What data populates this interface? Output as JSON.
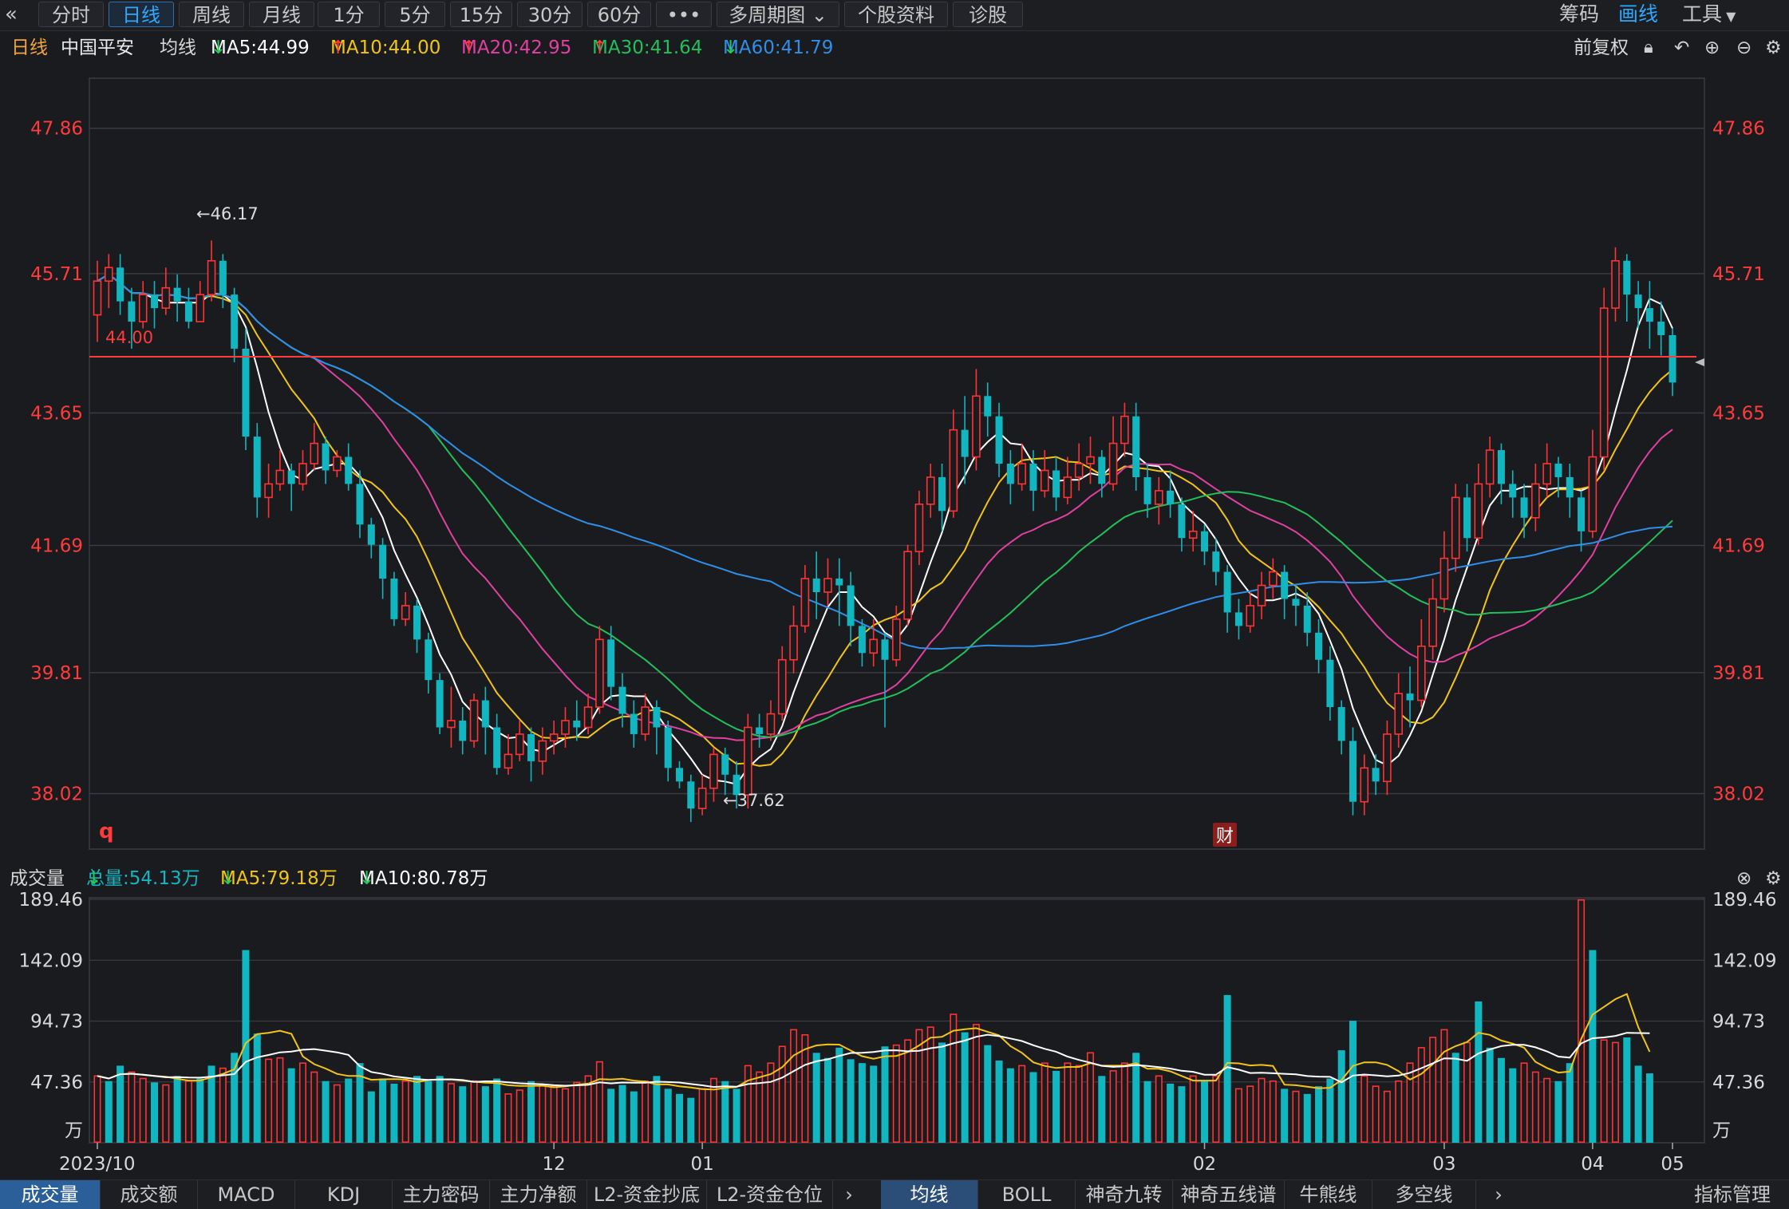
{
  "toolbar": {
    "back_icon": "double-chevron-left-icon",
    "period_tabs": [
      "分时",
      "日线",
      "周线",
      "月线",
      "1分",
      "5分",
      "15分",
      "30分",
      "60分",
      "•••"
    ],
    "active_tab": "日线",
    "multi_period": "多周期图",
    "stock_info": "个股资料",
    "diagnose": "诊股",
    "chips": "筹码",
    "draw": "画线",
    "tools": "工具"
  },
  "ma_header": {
    "period": "日线",
    "stock_name": "中国平安",
    "ma_label": "均线",
    "ma5": "MA5:44.99",
    "ma10": "MA10:44.00",
    "ma20": "MA20:42.95",
    "ma30": "MA30:41.64",
    "ma60": "MA60:41.79",
    "adjust": "前复权"
  },
  "colors": {
    "up": "#ff3333",
    "down": "#11b6c0",
    "ma5": "#ffffff",
    "ma10": "#f2c418",
    "ma20": "#e040a0",
    "ma30": "#22c05a",
    "ma60": "#2f8fe8",
    "price_axis": "#ff3b3b",
    "grid": "#3a3b42",
    "ref_line": "#ff3b3b"
  },
  "price_axis": {
    "ticks": [
      "47.86",
      "45.71",
      "43.65",
      "41.69",
      "39.81",
      "38.02"
    ]
  },
  "annotations": {
    "high_label": "←46.17",
    "low_label": "←37.62",
    "ref_price": "44.00",
    "q_mark": "q",
    "fin_mark": "财"
  },
  "volume_header": {
    "title": "成交量",
    "total": "总量:54.13万",
    "ma5": "MA5:79.18万",
    "ma10": "MA10:80.78万"
  },
  "volume_axis": {
    "ticks": [
      "189.46",
      "142.09",
      "94.73",
      "47.36"
    ],
    "unit": "万"
  },
  "x_axis": {
    "labels": [
      "2023/10",
      "12",
      "01",
      "02",
      "03",
      "04",
      "05"
    ]
  },
  "bottom_tabs_left": [
    "成交量",
    "成交额",
    "MACD",
    "KDJ",
    "主力密码",
    "主力净额",
    "L2-资金抄底",
    "L2-资金仓位"
  ],
  "bottom_tabs_right": [
    "均线",
    "BOLL",
    "神奇九转",
    "神奇五线谱",
    "牛熊线",
    "多空线"
  ],
  "bottom_right": "指标管理",
  "chart_data": {
    "type": "candlestick",
    "ylim": [
      37.2,
      48.6
    ],
    "vol_max": 189.46,
    "candles": [
      [
        45.1,
        45.6,
        44.7,
        45.9
      ],
      [
        45.6,
        45.8,
        45.2,
        46.0
      ],
      [
        45.8,
        45.3,
        45.1,
        46.0
      ],
      [
        45.3,
        45.0,
        44.6,
        45.5
      ],
      [
        45.0,
        45.4,
        44.9,
        45.6
      ],
      [
        45.4,
        45.2,
        44.9,
        45.6
      ],
      [
        45.2,
        45.5,
        45.1,
        45.8
      ],
      [
        45.5,
        45.3,
        45.0,
        45.7
      ],
      [
        45.3,
        45.0,
        44.9,
        45.5
      ],
      [
        45.0,
        45.4,
        45.0,
        45.6
      ],
      [
        45.4,
        45.9,
        45.3,
        46.2
      ],
      [
        45.9,
        45.4,
        45.2,
        46.0
      ],
      [
        45.4,
        44.6,
        44.4,
        45.5
      ],
      [
        44.6,
        43.3,
        43.1,
        44.9
      ],
      [
        43.3,
        42.4,
        42.1,
        43.5
      ],
      [
        42.4,
        42.6,
        42.1,
        42.9
      ],
      [
        42.6,
        42.8,
        42.5,
        43.1
      ],
      [
        42.8,
        42.6,
        42.2,
        42.9
      ],
      [
        42.6,
        42.9,
        42.5,
        43.1
      ],
      [
        42.9,
        43.2,
        42.8,
        43.5
      ],
      [
        43.2,
        42.8,
        42.6,
        43.3
      ],
      [
        42.8,
        43.0,
        42.7,
        43.1
      ],
      [
        43.0,
        42.6,
        42.5,
        43.2
      ],
      [
        42.6,
        42.0,
        41.8,
        42.8
      ],
      [
        42.0,
        41.7,
        41.5,
        42.1
      ],
      [
        41.7,
        41.2,
        40.9,
        41.8
      ],
      [
        41.2,
        40.6,
        40.5,
        41.3
      ],
      [
        40.6,
        40.8,
        40.5,
        41.0
      ],
      [
        40.8,
        40.3,
        40.1,
        40.9
      ],
      [
        40.3,
        39.7,
        39.5,
        40.4
      ],
      [
        39.7,
        39.0,
        38.9,
        39.8
      ],
      [
        39.0,
        39.1,
        38.7,
        39.6
      ],
      [
        39.1,
        38.8,
        38.6,
        39.3
      ],
      [
        38.8,
        39.4,
        38.7,
        39.5
      ],
      [
        39.4,
        39.0,
        38.6,
        39.6
      ],
      [
        39.0,
        38.4,
        38.3,
        39.2
      ],
      [
        38.4,
        38.6,
        38.3,
        38.9
      ],
      [
        38.6,
        38.9,
        38.5,
        39.1
      ],
      [
        38.9,
        38.5,
        38.2,
        39.0
      ],
      [
        38.5,
        38.8,
        38.3,
        39.0
      ],
      [
        38.8,
        38.9,
        38.6,
        39.1
      ],
      [
        38.9,
        39.1,
        38.7,
        39.3
      ],
      [
        39.1,
        39.0,
        38.8,
        39.4
      ],
      [
        39.0,
        39.3,
        38.9,
        39.5
      ],
      [
        39.3,
        40.3,
        39.2,
        40.5
      ],
      [
        40.3,
        39.6,
        39.4,
        40.5
      ],
      [
        39.6,
        39.2,
        39.0,
        39.8
      ],
      [
        39.2,
        38.9,
        38.7,
        39.4
      ],
      [
        38.9,
        39.3,
        38.8,
        39.5
      ],
      [
        39.3,
        39.0,
        38.6,
        39.4
      ],
      [
        39.0,
        38.4,
        38.2,
        39.1
      ],
      [
        38.4,
        38.2,
        38.1,
        38.5
      ],
      [
        38.2,
        37.8,
        37.6,
        38.3
      ],
      [
        37.8,
        38.1,
        37.7,
        38.3
      ],
      [
        38.1,
        38.6,
        37.9,
        38.7
      ],
      [
        38.6,
        38.3,
        38.0,
        38.7
      ],
      [
        38.3,
        38.0,
        37.8,
        38.5
      ],
      [
        38.0,
        39.0,
        37.8,
        39.2
      ],
      [
        39.0,
        38.9,
        38.7,
        39.2
      ],
      [
        38.9,
        39.2,
        38.8,
        39.4
      ],
      [
        39.2,
        40.0,
        39.1,
        40.2
      ],
      [
        40.0,
        40.5,
        39.8,
        40.8
      ],
      [
        40.5,
        41.2,
        40.4,
        41.4
      ],
      [
        41.2,
        41.0,
        40.6,
        41.6
      ],
      [
        41.0,
        41.2,
        40.8,
        41.5
      ],
      [
        41.2,
        41.1,
        40.5,
        41.5
      ],
      [
        41.1,
        40.5,
        40.2,
        41.3
      ],
      [
        40.5,
        40.1,
        39.9,
        40.6
      ],
      [
        40.1,
        40.3,
        39.9,
        40.6
      ],
      [
        40.3,
        40.0,
        39.0,
        40.4
      ],
      [
        40.0,
        40.6,
        39.9,
        40.8
      ],
      [
        40.6,
        41.6,
        40.5,
        41.7
      ],
      [
        41.6,
        42.3,
        41.4,
        42.5
      ],
      [
        42.3,
        42.7,
        42.1,
        42.9
      ],
      [
        42.7,
        42.2,
        41.9,
        42.9
      ],
      [
        42.2,
        43.4,
        42.1,
        43.7
      ],
      [
        43.4,
        43.0,
        42.6,
        43.9
      ],
      [
        43.0,
        43.9,
        42.8,
        44.3
      ],
      [
        43.9,
        43.6,
        43.3,
        44.1
      ],
      [
        43.6,
        42.9,
        42.7,
        43.8
      ],
      [
        42.9,
        42.6,
        42.3,
        43.1
      ],
      [
        42.6,
        42.9,
        42.5,
        43.2
      ],
      [
        42.9,
        42.5,
        42.2,
        43.1
      ],
      [
        42.5,
        42.8,
        42.4,
        43.1
      ],
      [
        42.8,
        42.4,
        42.2,
        43.0
      ],
      [
        42.4,
        42.7,
        42.3,
        43.0
      ],
      [
        42.7,
        42.9,
        42.5,
        43.2
      ],
      [
        42.9,
        43.0,
        42.6,
        43.3
      ],
      [
        43.0,
        42.6,
        42.4,
        43.1
      ],
      [
        42.6,
        43.2,
        42.5,
        43.6
      ],
      [
        43.2,
        43.6,
        43.0,
        43.8
      ],
      [
        43.6,
        42.7,
        42.5,
        43.8
      ],
      [
        42.7,
        42.3,
        42.1,
        42.9
      ],
      [
        42.3,
        42.5,
        42.0,
        42.7
      ],
      [
        42.5,
        42.3,
        42.1,
        42.8
      ],
      [
        42.3,
        41.8,
        41.6,
        42.4
      ],
      [
        41.8,
        41.9,
        41.6,
        42.2
      ],
      [
        41.9,
        41.6,
        41.4,
        42.0
      ],
      [
        41.6,
        41.3,
        41.1,
        41.8
      ],
      [
        41.3,
        40.7,
        40.4,
        41.4
      ],
      [
        40.7,
        40.5,
        40.3,
        40.9
      ],
      [
        40.5,
        40.8,
        40.4,
        41.0
      ],
      [
        40.8,
        41.1,
        40.6,
        41.3
      ],
      [
        41.1,
        41.3,
        40.9,
        41.5
      ],
      [
        41.3,
        40.9,
        40.6,
        41.4
      ],
      [
        40.9,
        40.8,
        40.5,
        41.1
      ],
      [
        40.8,
        40.4,
        40.2,
        41.0
      ],
      [
        40.4,
        40.0,
        39.8,
        40.6
      ],
      [
        40.0,
        39.3,
        39.1,
        40.2
      ],
      [
        39.3,
        38.8,
        38.6,
        39.4
      ],
      [
        38.8,
        37.9,
        37.7,
        39.0
      ],
      [
        37.9,
        38.4,
        37.7,
        38.6
      ],
      [
        38.4,
        38.2,
        38.0,
        38.6
      ],
      [
        38.2,
        38.9,
        38.0,
        39.1
      ],
      [
        38.9,
        39.5,
        38.7,
        39.8
      ],
      [
        39.5,
        39.4,
        39.0,
        39.9
      ],
      [
        39.4,
        40.2,
        39.3,
        40.6
      ],
      [
        40.2,
        40.9,
        40.0,
        41.2
      ],
      [
        40.9,
        41.5,
        40.7,
        41.9
      ],
      [
        41.5,
        42.4,
        41.3,
        42.6
      ],
      [
        42.4,
        41.8,
        41.6,
        42.6
      ],
      [
        41.8,
        42.6,
        41.7,
        42.9
      ],
      [
        42.6,
        43.1,
        42.4,
        43.3
      ],
      [
        43.1,
        42.6,
        42.3,
        43.2
      ],
      [
        42.6,
        42.4,
        42.1,
        42.8
      ],
      [
        42.4,
        42.1,
        41.8,
        42.6
      ],
      [
        42.1,
        42.6,
        41.9,
        42.9
      ],
      [
        42.6,
        42.9,
        42.4,
        43.2
      ],
      [
        42.9,
        42.7,
        42.4,
        43.0
      ],
      [
        42.7,
        42.4,
        42.1,
        42.9
      ],
      [
        42.4,
        41.9,
        41.6,
        42.5
      ],
      [
        41.9,
        43.0,
        41.8,
        43.4
      ],
      [
        43.0,
        45.2,
        42.8,
        45.5
      ],
      [
        45.2,
        45.9,
        45.0,
        46.1
      ],
      [
        45.9,
        45.4,
        45.0,
        46.0
      ],
      [
        45.4,
        45.2,
        44.9,
        45.6
      ],
      [
        45.2,
        45.0,
        44.6,
        45.6
      ],
      [
        45.0,
        44.8,
        44.5,
        45.3
      ],
      [
        44.8,
        44.1,
        43.9,
        44.9
      ]
    ],
    "volumes": [
      [
        52,
        0
      ],
      [
        48,
        1
      ],
      [
        60,
        1
      ],
      [
        55,
        0
      ],
      [
        50,
        0
      ],
      [
        47,
        1
      ],
      [
        45,
        0
      ],
      [
        52,
        1
      ],
      [
        48,
        0
      ],
      [
        50,
        1
      ],
      [
        60,
        1
      ],
      [
        58,
        0
      ],
      [
        70,
        1
      ],
      [
        150,
        1
      ],
      [
        85,
        1
      ],
      [
        65,
        0
      ],
      [
        66,
        0
      ],
      [
        58,
        1
      ],
      [
        62,
        0
      ],
      [
        55,
        0
      ],
      [
        48,
        1
      ],
      [
        45,
        0
      ],
      [
        50,
        1
      ],
      [
        62,
        1
      ],
      [
        40,
        1
      ],
      [
        50,
        1
      ],
      [
        46,
        1
      ],
      [
        48,
        0
      ],
      [
        52,
        1
      ],
      [
        48,
        1
      ],
      [
        52,
        1
      ],
      [
        46,
        0
      ],
      [
        44,
        1
      ],
      [
        48,
        0
      ],
      [
        44,
        1
      ],
      [
        50,
        1
      ],
      [
        38,
        0
      ],
      [
        41,
        0
      ],
      [
        48,
        1
      ],
      [
        45,
        0
      ],
      [
        44,
        0
      ],
      [
        42,
        0
      ],
      [
        47,
        0
      ],
      [
        52,
        0
      ],
      [
        63,
        0
      ],
      [
        42,
        1
      ],
      [
        45,
        1
      ],
      [
        40,
        1
      ],
      [
        48,
        0
      ],
      [
        52,
        1
      ],
      [
        42,
        1
      ],
      [
        38,
        1
      ],
      [
        35,
        1
      ],
      [
        42,
        0
      ],
      [
        50,
        0
      ],
      [
        48,
        1
      ],
      [
        42,
        1
      ],
      [
        60,
        0
      ],
      [
        55,
        0
      ],
      [
        62,
        0
      ],
      [
        75,
        0
      ],
      [
        88,
        0
      ],
      [
        84,
        0
      ],
      [
        70,
        1
      ],
      [
        66,
        1
      ],
      [
        74,
        1
      ],
      [
        65,
        1
      ],
      [
        62,
        1
      ],
      [
        60,
        1
      ],
      [
        75,
        1
      ],
      [
        76,
        0
      ],
      [
        80,
        0
      ],
      [
        88,
        0
      ],
      [
        90,
        0
      ],
      [
        78,
        1
      ],
      [
        100,
        0
      ],
      [
        86,
        1
      ],
      [
        92,
        0
      ],
      [
        76,
        1
      ],
      [
        64,
        1
      ],
      [
        58,
        1
      ],
      [
        60,
        0
      ],
      [
        55,
        1
      ],
      [
        62,
        0
      ],
      [
        56,
        1
      ],
      [
        62,
        0
      ],
      [
        60,
        0
      ],
      [
        70,
        0
      ],
      [
        52,
        1
      ],
      [
        56,
        0
      ],
      [
        62,
        0
      ],
      [
        70,
        1
      ],
      [
        48,
        1
      ],
      [
        52,
        0
      ],
      [
        46,
        1
      ],
      [
        44,
        1
      ],
      [
        52,
        0
      ],
      [
        48,
        1
      ],
      [
        52,
        0
      ],
      [
        115,
        1
      ],
      [
        42,
        0
      ],
      [
        44,
        0
      ],
      [
        50,
        0
      ],
      [
        48,
        0
      ],
      [
        42,
        1
      ],
      [
        40,
        0
      ],
      [
        38,
        1
      ],
      [
        44,
        1
      ],
      [
        50,
        1
      ],
      [
        72,
        1
      ],
      [
        95,
        1
      ],
      [
        52,
        0
      ],
      [
        44,
        0
      ],
      [
        40,
        0
      ],
      [
        48,
        0
      ],
      [
        62,
        0
      ],
      [
        74,
        0
      ],
      [
        82,
        0
      ],
      [
        88,
        0
      ],
      [
        70,
        1
      ],
      [
        78,
        0
      ],
      [
        110,
        1
      ],
      [
        74,
        1
      ],
      [
        66,
        1
      ],
      [
        58,
        1
      ],
      [
        62,
        0
      ],
      [
        55,
        0
      ],
      [
        50,
        0
      ],
      [
        48,
        1
      ],
      [
        62,
        1
      ],
      [
        189,
        0
      ],
      [
        150,
        1
      ],
      [
        80,
        0
      ],
      [
        78,
        0
      ],
      [
        82,
        1
      ],
      [
        60,
        1
      ],
      [
        54,
        1
      ]
    ]
  }
}
